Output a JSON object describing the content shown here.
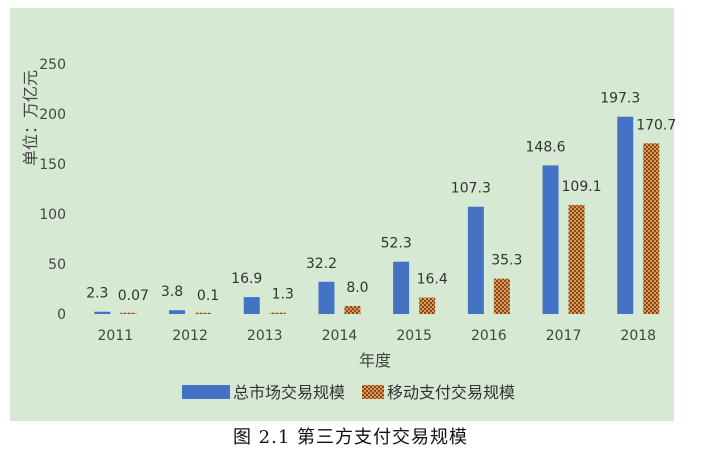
{
  "caption": "图 2.1 第三方支付交易规模",
  "chart_data": {
    "type": "bar",
    "categories": [
      "2011",
      "2012",
      "2013",
      "2014",
      "2015",
      "2016",
      "2017",
      "2018"
    ],
    "series": [
      {
        "name": "总市场交易规模",
        "values": [
          2.3,
          3.8,
          16.9,
          32.2,
          52.3,
          107.3,
          148.6,
          197.3
        ],
        "labels": [
          "2.3",
          "3.8",
          "16.9",
          "32.2",
          "52.3",
          "107.3",
          "148.6",
          "197.3"
        ],
        "color": "#4472c4"
      },
      {
        "name": "移动支付交易规模",
        "values": [
          0.07,
          0.1,
          1.3,
          8.0,
          16.4,
          35.3,
          109.1,
          170.7
        ],
        "labels": [
          "0.07",
          "0.1",
          "1.3",
          "8.0",
          "16.4",
          "35.3",
          "109.1",
          "170.7"
        ],
        "color": "#c0702a"
      }
    ],
    "yticks": [
      "0",
      "50",
      "100",
      "150",
      "200",
      "250"
    ],
    "ylim": [
      0,
      250
    ],
    "xlabel": "年度",
    "ylabel": "单位：万亿元",
    "legend_position": "bottom",
    "background": "#d6ead3",
    "grid": false
  }
}
